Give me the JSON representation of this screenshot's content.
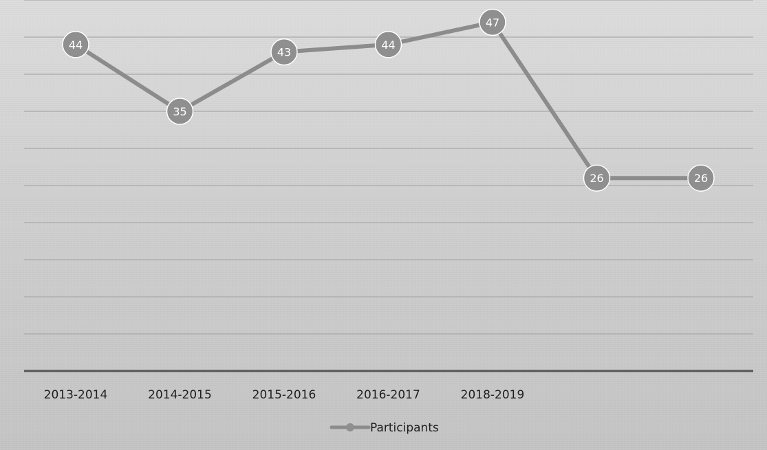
{
  "chart_data": {
    "type": "line",
    "categories": [
      "2013-2014",
      "2014-2015",
      "2015-2016",
      "2016-2017",
      "2018-2019",
      "",
      ""
    ],
    "series": [
      {
        "name": "Participants",
        "values": [
          44,
          35,
          43,
          44,
          47,
          26,
          26
        ]
      }
    ],
    "title": "",
    "xlabel": "",
    "ylabel": "",
    "ylim": [
      0,
      50
    ],
    "grid": true,
    "legend": "bottom",
    "data_labels": true,
    "colors": {
      "line": "#8c8c8c",
      "marker": "#8f8f8f",
      "marker_border": "#ffffff",
      "grid": "#a9a9a9",
      "axis": "#555555",
      "label_text": "#ffffff"
    }
  }
}
